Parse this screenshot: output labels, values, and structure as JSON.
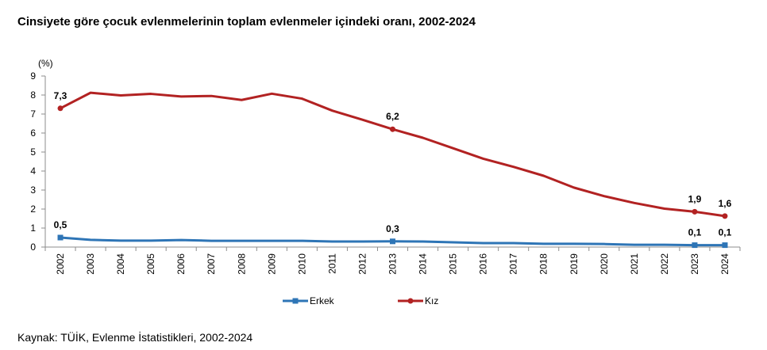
{
  "title": "Cinsiyete göre çocuk evlenmelerinin toplam evlenmeler içindeki oranı, 2002-2024",
  "source": "Kaynak: TÜİK, Evlenme İstatistikleri, 2002-2024",
  "chart_data": {
    "type": "line",
    "title": "Cinsiyete göre çocuk evlenmelerinin toplam evlenmeler içindeki oranı, 2002-2024",
    "ylabel": "(%)",
    "xlabel": "",
    "ylim": [
      0,
      9
    ],
    "yticks": [
      "0",
      "1",
      "2",
      "3",
      "4",
      "5",
      "6",
      "7",
      "8",
      "9"
    ],
    "grid": false,
    "legend": "bottom",
    "x": [
      "2002",
      "2003",
      "2004",
      "2005",
      "2006",
      "2007",
      "2008",
      "2009",
      "2010",
      "2011",
      "2012",
      "2013",
      "2014",
      "2015",
      "2016",
      "2017",
      "2018",
      "2019",
      "2020",
      "2021",
      "2022",
      "2023",
      "2024"
    ],
    "series": [
      {
        "name": "Erkek",
        "color": "#2e75b6",
        "marker": "square",
        "values": [
          0.5,
          0.38,
          0.34,
          0.34,
          0.37,
          0.33,
          0.33,
          0.33,
          0.33,
          0.29,
          0.29,
          0.3,
          0.29,
          0.25,
          0.21,
          0.21,
          0.17,
          0.17,
          0.16,
          0.12,
          0.12,
          0.1,
          0.1
        ],
        "labels": [
          {
            "index": 0,
            "text": "0,5"
          },
          {
            "index": 11,
            "text": "0,3"
          },
          {
            "index": 21,
            "text": "0,1"
          },
          {
            "index": 22,
            "text": "0,1"
          }
        ]
      },
      {
        "name": "Kız",
        "color": "#b22222",
        "marker": "circle",
        "values": [
          7.3,
          8.12,
          7.98,
          8.06,
          7.92,
          7.95,
          7.74,
          8.07,
          7.81,
          7.18,
          6.7,
          6.2,
          5.75,
          5.2,
          4.65,
          4.22,
          3.75,
          3.13,
          2.68,
          2.32,
          2.02,
          1.86,
          1.63
        ],
        "labels": [
          {
            "index": 0,
            "text": "7,3"
          },
          {
            "index": 11,
            "text": "6,2"
          },
          {
            "index": 21,
            "text": "1,9"
          },
          {
            "index": 22,
            "text": "1,6"
          }
        ]
      }
    ]
  }
}
